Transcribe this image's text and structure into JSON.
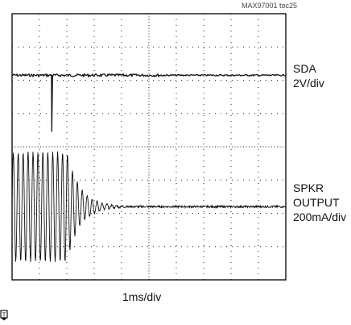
{
  "figure_id": "MAX97001 toc25",
  "chart_data": {
    "type": "line",
    "title": "",
    "time_scale": "1ms/div",
    "grid": true,
    "divisions": {
      "x": 10,
      "y": 8
    },
    "x_range_ms": [
      0,
      10
    ],
    "trigger_marker": "T",
    "trigger_time_ms": 1.45,
    "series": [
      {
        "name": "SDA",
        "scale": "2V/div",
        "baseline_div": 6.15,
        "events": [
          {
            "type": "negative-pulse",
            "time_ms": 1.45,
            "depth_div": 1.7
          }
        ]
      },
      {
        "name": "SPKR OUTPUT",
        "label_lines": [
          "SPKR",
          "OUTPUT",
          "200mA/div"
        ],
        "scale": "200mA/div",
        "baseline_div": 2.2,
        "oscillation": {
          "start_ms": 0,
          "full_amplitude_until_ms": 2.0,
          "settled_by_ms": 3.5,
          "initial_amplitude_div": 1.65,
          "period_ms": 0.18
        }
      }
    ]
  }
}
